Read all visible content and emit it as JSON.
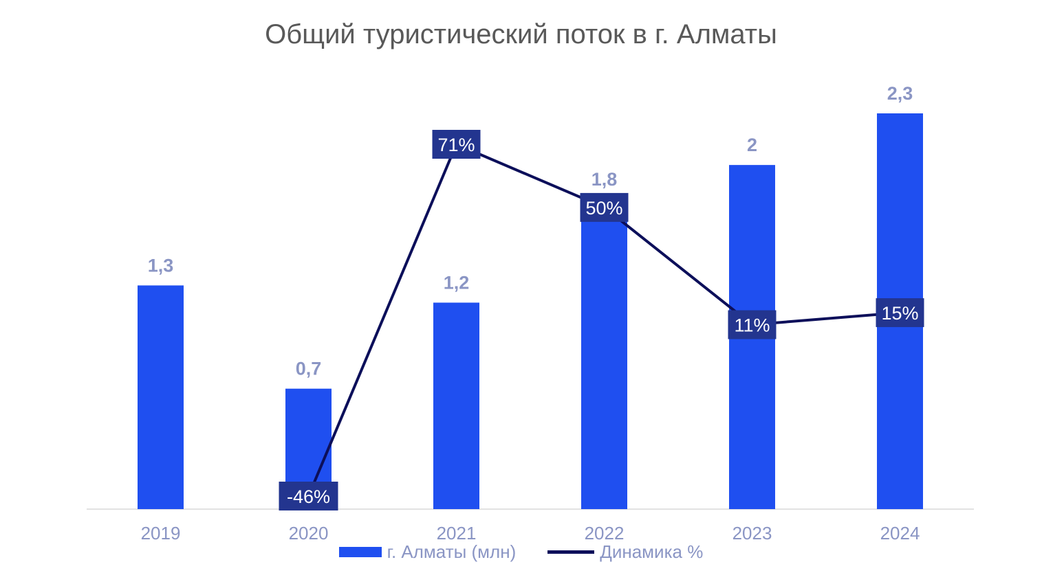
{
  "chart_data": {
    "type": "bar",
    "title": "Общий туристический поток в г. Алматы",
    "categories": [
      "2019",
      "2020",
      "2021",
      "2022",
      "2023",
      "2024"
    ],
    "series": [
      {
        "name": "г. Алматы (млн)",
        "type": "bar",
        "values": [
          1.3,
          0.7,
          1.2,
          1.8,
          2,
          2.3
        ],
        "labels": [
          "1,3",
          "0,7",
          "1,2",
          "1,8",
          "2",
          "2,3"
        ],
        "color": "#1f4ff0"
      },
      {
        "name": "Динамика %",
        "type": "line",
        "values": [
          null,
          -46,
          71,
          50,
          11,
          15
        ],
        "labels": [
          "",
          "-46%",
          "71%",
          "50%",
          "11%",
          "15%"
        ],
        "color": "#0c0f5a"
      }
    ],
    "ylim": [
      0,
      2.3
    ],
    "y2lim": [
      -46,
      71
    ],
    "legend": "bottom",
    "grid": false
  },
  "colors": {
    "bar": "#1f4ff0",
    "line": "#0c0f5a",
    "line_label_bg": "#23358f",
    "bar_label": "#8a95c4",
    "axis_label": "#8a95c4",
    "baseline": "#d9d9d9"
  }
}
